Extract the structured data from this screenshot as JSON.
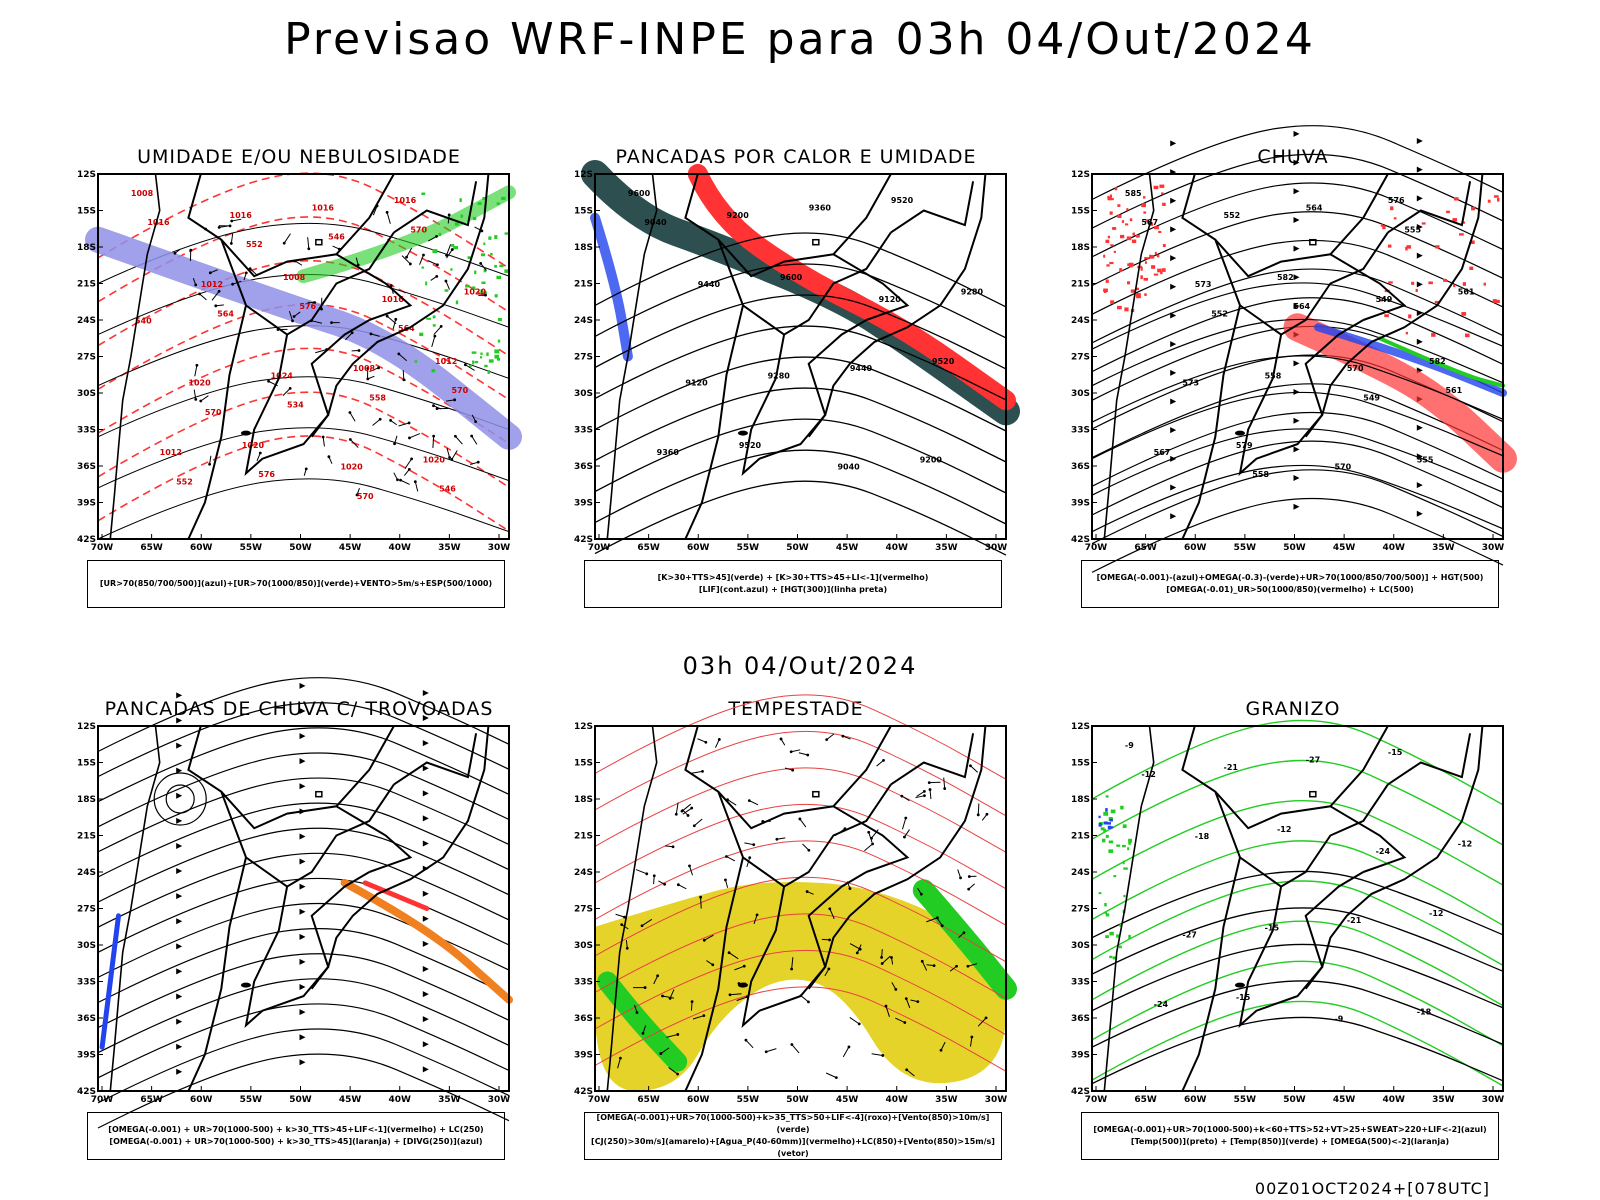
{
  "header": {
    "title": "Previsao WRF-INPE  para 03h 04/Out/2024"
  },
  "middle_title": "03h 04/Out/2024",
  "footer_text": "00Z01OCT2024+[078UTC]",
  "colors": {
    "blue_humidity": "#8f8fe8",
    "green": "#22cc22",
    "red": "#ff3333",
    "dark_teal": "#2e4f4f",
    "yellow": "#e6d32a",
    "orange": "#f08020",
    "blue_line": "#2244ee"
  },
  "map": {
    "lat_labels": [
      "12S",
      "15S",
      "18S",
      "21S",
      "24S",
      "27S",
      "30S",
      "33S",
      "36S",
      "39S",
      "42S"
    ],
    "lon_labels": [
      "70W",
      "65W",
      "60W",
      "55W",
      "50W",
      "45W",
      "40W",
      "35W",
      "30W"
    ]
  },
  "panels": [
    {
      "id": "umidade",
      "title": "UMIDADE E/OU NEBULOSIDADE",
      "legend": [
        "[UR>70(850/700/500)](azul)+[UR>70(1000/850)](verde)+VENTO>5m/s+ESP(500/1000)"
      ],
      "labels": [
        "1008",
        "1008",
        "1012",
        "1020",
        "1016",
        "1012",
        "1008",
        "1012",
        "1016",
        "1020",
        "1024",
        "1020",
        "1016",
        "1016",
        "1020",
        "1020",
        "1016",
        "576",
        "570",
        "576",
        "570",
        "564",
        "558",
        "552",
        "546",
        "540",
        "534",
        "546",
        "552",
        "564",
        "570",
        "570"
      ]
    },
    {
      "id": "pancadas_calor",
      "title": "PANCADAS POR CALOR E UMIDADE",
      "legend": [
        "[K>30+TTS>45](verde) + [K>30+TTS>45+LI<-1](vermelho)",
        "[LIF](cont.azul) + [HGT(300)](linha preta)"
      ],
      "labels": [
        "9600",
        "9600",
        "9520",
        "9520",
        "9520",
        "9440",
        "9440",
        "9360",
        "9360",
        "9280",
        "9280",
        "9200",
        "9200",
        "9120",
        "9120",
        "9040",
        "9040"
      ]
    },
    {
      "id": "chuva",
      "title": "CHUVA",
      "legend": [
        "[OMEGA(-0.001)-(azul)+OMEGA(-0.3)-(verde)+UR>70(1000/850/700/500)] + HGT(500)",
        "[OMEGA(-0.01)_UR>50(1000/850)(vermelho) + LC(500)"
      ],
      "labels": [
        "585",
        "582",
        "582",
        "579",
        "576",
        "573",
        "570",
        "567",
        "564",
        "561",
        "558",
        "555",
        "552",
        "549",
        "573",
        "570",
        "567",
        "564",
        "561",
        "558",
        "555",
        "552",
        "549"
      ]
    },
    {
      "id": "pancadas_trovoadas",
      "title": "PANCADAS DE CHUVA C/ TROVOADAS",
      "legend": [
        "[OMEGA(-0.001) + UR>70(1000-500) + k>30_TTS>45+LIF<-1](vermelho) + LC(250)",
        "[OMEGA(-0.001) + UR>70(1000-500) + k>30_TTS>45](laranja) + [DIVG(250)](azul)"
      ],
      "labels": []
    },
    {
      "id": "tempestade",
      "title": "TEMPESTADE",
      "legend": [
        "[OMEGA(-0.001)+UR>70(1000-500)+k>35_TTS>50+LIF<-4](roxo)+[Vento(850)>10m/s](verde)",
        "[CJ(250)>30m/s](amarelo)+[Agua_P(40-60mm)](vermelho)+LC(850)+[Vento(850)>15m/s](vetor)"
      ],
      "labels": []
    },
    {
      "id": "granizo",
      "title": "GRANIZO",
      "legend": [
        "[OMEGA(-0.001)+UR>70(1000-500)+k<60+TTS>52+VT>25+SWEAT>220+LIF<-2](azul)",
        "[Temp(500)](preto) + [Temp(850)](verde) + [OMEGA(500)<-2](laranja)"
      ],
      "labels": [
        "-9",
        "-12",
        "-12",
        "-15",
        "-15",
        "-18",
        "-21",
        "-24",
        "-27",
        "-12",
        "-15",
        "-18",
        "-21",
        "-24",
        "-27",
        "-9",
        "-12"
      ]
    }
  ]
}
